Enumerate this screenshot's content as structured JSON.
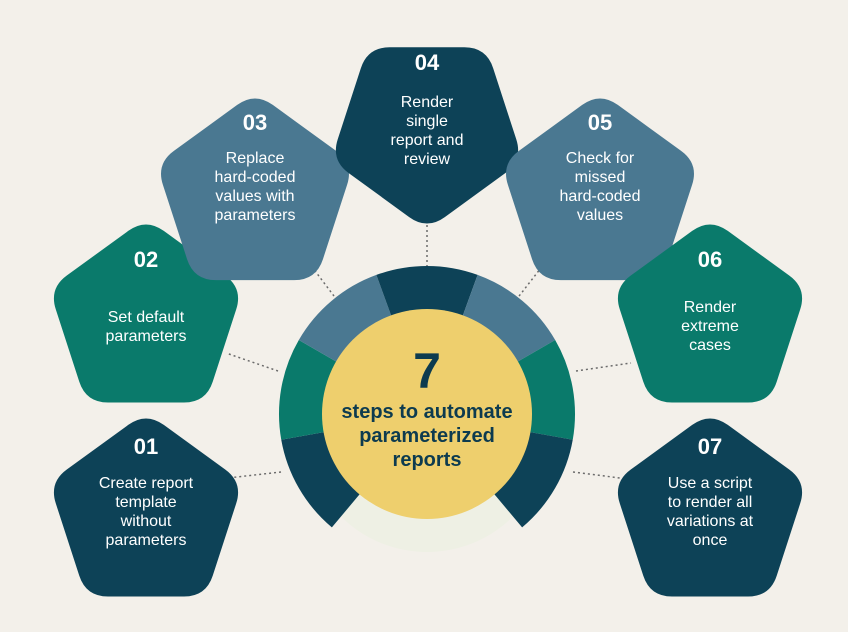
{
  "colors": {
    "background": "#f3f0ea",
    "navy": "#0d4257",
    "steel_blue": "#4a7891",
    "teal": "#0a7a6b",
    "gold": "#eecf6d",
    "text_dark": "#0d3b4f",
    "text_light": "#ffffff"
  },
  "center": {
    "number": "7",
    "line1": "steps to automate",
    "line2": "parameterized",
    "line3": "reports"
  },
  "steps": [
    {
      "number": "01",
      "lines": [
        "Create report",
        "template",
        "without",
        "parameters"
      ],
      "color": "navy"
    },
    {
      "number": "02",
      "lines": [
        "Set default",
        "parameters"
      ],
      "color": "teal"
    },
    {
      "number": "03",
      "lines": [
        "Replace",
        "hard-coded",
        "values with",
        "parameters"
      ],
      "color": "steel_blue"
    },
    {
      "number": "04",
      "lines": [
        "Render",
        "single",
        "report and",
        "review"
      ],
      "color": "navy"
    },
    {
      "number": "05",
      "lines": [
        "Check for",
        "missed",
        "hard-coded",
        "values"
      ],
      "color": "steel_blue"
    },
    {
      "number": "06",
      "lines": [
        "Render",
        "extreme",
        "cases"
      ],
      "color": "teal"
    },
    {
      "number": "07",
      "lines": [
        "Use a script",
        "to render all",
        "variations at",
        "once"
      ],
      "color": "navy"
    }
  ]
}
